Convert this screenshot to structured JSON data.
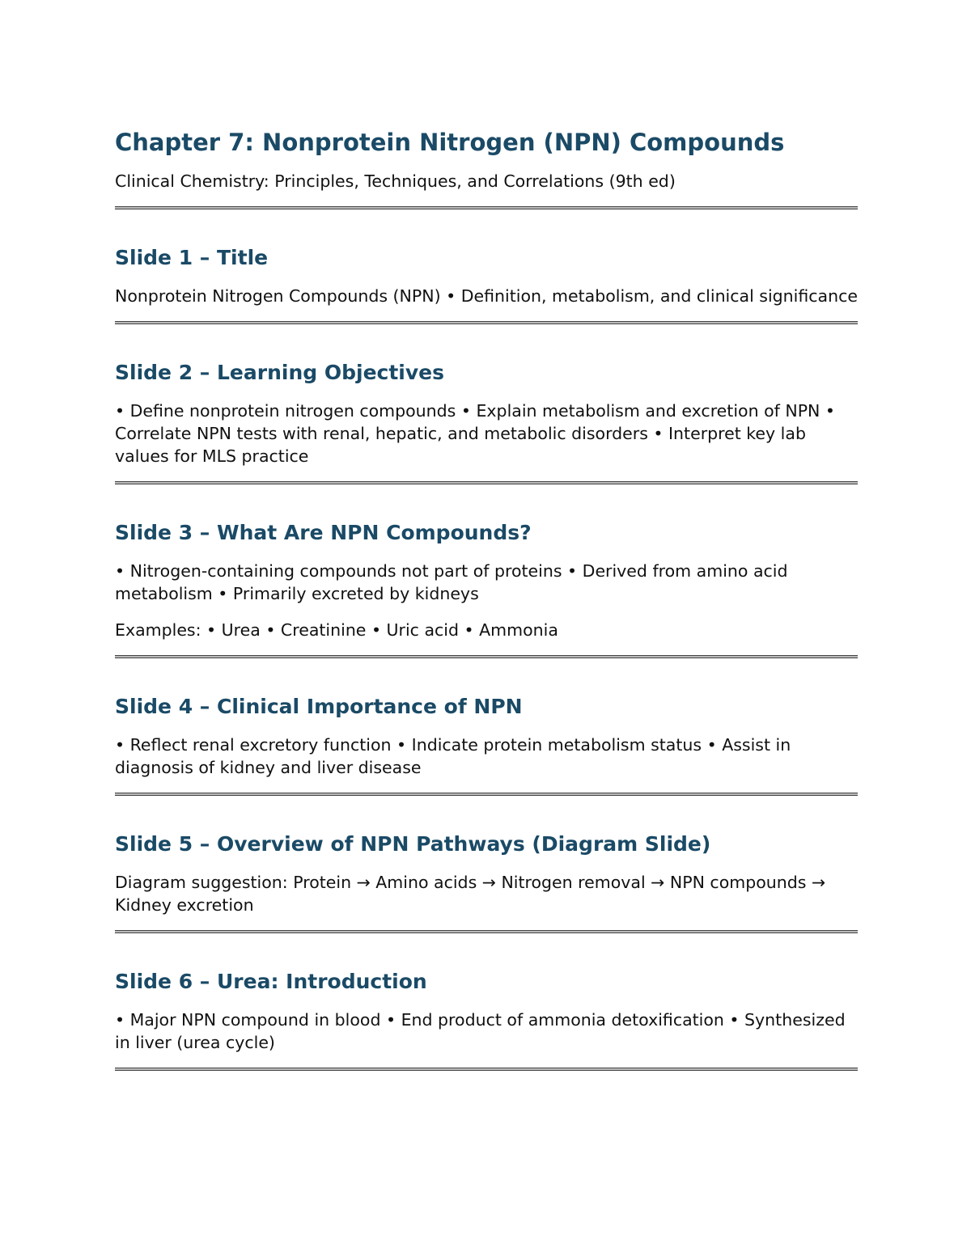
{
  "document": {
    "title": "Chapter 7: Nonprotein Nitrogen (NPN) Compounds",
    "subtitle": "Clinical Chemistry: Principles, Techniques, and Correlations (9th ed)",
    "colors": {
      "heading": "#1a4a66",
      "text": "#111111"
    }
  },
  "slides": [
    {
      "heading": "Slide 1 – Title",
      "paragraphs": [
        "Nonprotein Nitrogen Compounds (NPN) • Definition, metabolism, and clinical significance"
      ]
    },
    {
      "heading": "Slide 2 – Learning Objectives",
      "paragraphs": [
        "• Define nonprotein nitrogen compounds • Explain metabolism and excretion of NPN • Correlate NPN tests with renal, hepatic, and metabolic disorders • Interpret key lab values for MLS practice"
      ]
    },
    {
      "heading": "Slide 3 – What Are NPN Compounds?",
      "paragraphs": [
        "• Nitrogen-containing compounds not part of proteins • Derived from amino acid metabolism • Primarily excreted by kidneys",
        "Examples: • Urea • Creatinine • Uric acid • Ammonia"
      ]
    },
    {
      "heading": "Slide 4 – Clinical Importance of NPN",
      "paragraphs": [
        "• Reflect renal excretory function • Indicate protein metabolism status • Assist in diagnosis of kidney and liver disease"
      ]
    },
    {
      "heading": "Slide 5 – Overview of NPN Pathways (Diagram Slide)",
      "paragraphs": [
        "Diagram suggestion: Protein → Amino acids → Nitrogen removal → NPN compounds → Kidney excretion"
      ]
    },
    {
      "heading": "Slide 6 – Urea: Introduction",
      "paragraphs": [
        "• Major NPN compound in blood • End product of ammonia detoxification • Synthesized in liver (urea cycle)"
      ]
    }
  ]
}
